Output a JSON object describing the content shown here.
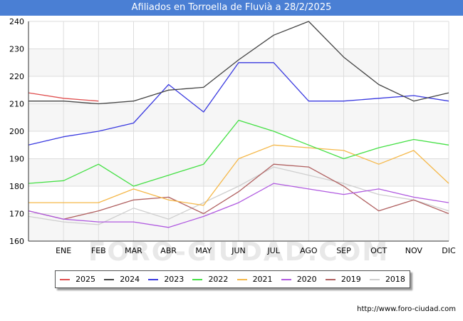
{
  "header": {
    "title": "Afiliados en Torroella de Fluvià a 28/2/2025"
  },
  "footer": {
    "url": "http://www.foro-ciudad.com",
    "watermark": "FORO-CIUDAD.COM"
  },
  "chart_data": {
    "type": "line",
    "title": "Afiliados en Torroella de Fluvià a 28/2/2025",
    "xlabel": "",
    "ylabel": "",
    "categories": [
      "",
      "ENE",
      "FEB",
      "MAR",
      "ABR",
      "MAY",
      "JUN",
      "JUL",
      "AGO",
      "SEP",
      "OCT",
      "NOV",
      "DIC"
    ],
    "ylim": [
      160,
      240
    ],
    "yticks": [
      160,
      170,
      180,
      190,
      200,
      210,
      220,
      230,
      240
    ],
    "grid": true,
    "legend_position": "bottom",
    "series": [
      {
        "name": "2025",
        "color": "#e05050",
        "values": [
          214,
          212,
          211,
          null,
          null,
          null,
          null,
          null,
          null,
          null,
          null,
          null,
          null
        ]
      },
      {
        "name": "2024",
        "color": "#444444",
        "values": [
          211,
          211,
          210,
          211,
          215,
          216,
          226,
          235,
          240,
          227,
          217,
          211,
          214
        ]
      },
      {
        "name": "2023",
        "color": "#3a3ae0",
        "values": [
          195,
          198,
          200,
          203,
          217,
          207,
          225,
          225,
          211,
          211,
          212,
          213,
          211
        ]
      },
      {
        "name": "2022",
        "color": "#44e044",
        "values": [
          181,
          182,
          188,
          180,
          184,
          188,
          204,
          200,
          195,
          190,
          194,
          197,
          195
        ]
      },
      {
        "name": "2021",
        "color": "#f5b84a",
        "values": [
          174,
          174,
          174,
          179,
          175,
          173,
          190,
          195,
          194,
          193,
          188,
          193,
          181
        ]
      },
      {
        "name": "2020",
        "color": "#b05ae0",
        "values": [
          171,
          168,
          167,
          167,
          165,
          169,
          174,
          181,
          179,
          177,
          179,
          176,
          174
        ]
      },
      {
        "name": "2019",
        "color": "#b06060",
        "values": [
          171,
          168,
          171,
          175,
          176,
          170,
          178,
          188,
          187,
          180,
          171,
          175,
          170
        ]
      },
      {
        "name": "2018",
        "color": "#cfcfcf",
        "values": [
          169,
          167,
          166,
          172,
          168,
          174,
          180,
          187,
          184,
          181,
          177,
          175,
          171
        ]
      }
    ]
  }
}
